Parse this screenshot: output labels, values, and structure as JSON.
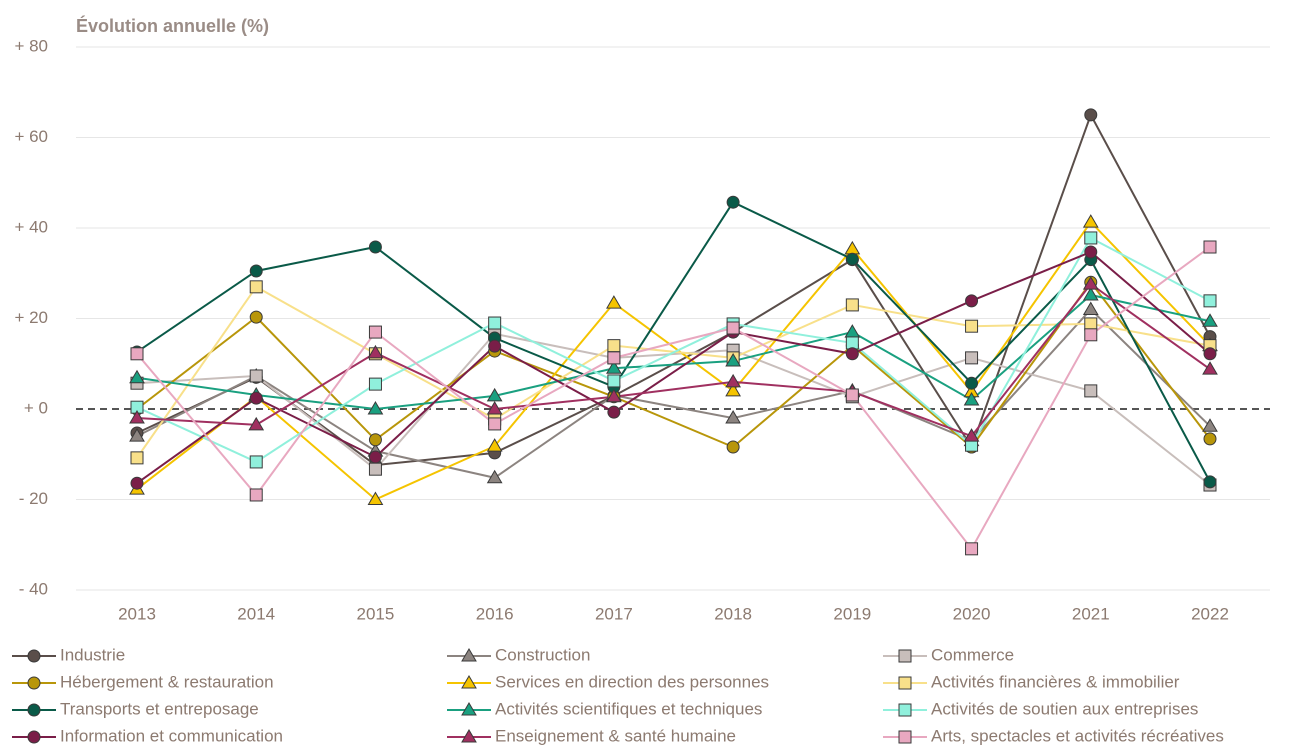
{
  "chart_data": {
    "type": "line",
    "title": "Évolution annuelle (%)",
    "categories": [
      "2013",
      "2014",
      "2015",
      "2016",
      "2017",
      "2018",
      "2019",
      "2020",
      "2021",
      "2022"
    ],
    "ylim": [
      -40,
      80
    ],
    "yticks": [
      {
        "value": -40,
        "label": "- 40"
      },
      {
        "value": -20,
        "label": "- 20"
      },
      {
        "value": 0,
        "label": "+ 0"
      },
      {
        "value": 20,
        "label": "+ 20"
      },
      {
        "value": 40,
        "label": "+ 40"
      },
      {
        "value": 60,
        "label": "+ 60"
      },
      {
        "value": 80,
        "label": "+ 80"
      }
    ],
    "grid": true,
    "series": [
      {
        "name": "Industrie",
        "color": "#5a4e4a",
        "marker": "circle",
        "values": [
          -5.3,
          7,
          -12.4,
          -9.7,
          2.9,
          17,
          33,
          -8.4,
          65,
          16
        ]
      },
      {
        "name": "Construction",
        "color": "#8c8480",
        "marker": "triangle",
        "values": [
          -6,
          7.3,
          -9.3,
          -15.2,
          3,
          -2,
          4,
          -7,
          22,
          -3.8
        ]
      },
      {
        "name": "Commerce",
        "color": "#c8bebb",
        "marker": "square",
        "values": [
          5.7,
          7.3,
          -13.3,
          16.6,
          11.3,
          13,
          2.7,
          11.3,
          4,
          -16.8
        ]
      },
      {
        "name": "Hébergement & restauration",
        "color": "#b8960a",
        "marker": "circle",
        "values": [
          0,
          20.3,
          -6.8,
          12.8,
          2.7,
          -8.4,
          14,
          -8.4,
          28,
          -6.6
        ]
      },
      {
        "name": "Services en direction des personnes",
        "color": "#f5c400",
        "marker": "triangle",
        "values": [
          -17.7,
          2.7,
          -20,
          -8.2,
          23.4,
          4,
          35.4,
          3.8,
          41.3,
          14
        ]
      },
      {
        "name": "Activités financières & immobilier",
        "color": "#f8e08a",
        "marker": "square",
        "values": [
          -10.8,
          27,
          12.2,
          -2.2,
          14,
          11.3,
          23,
          18.3,
          18.8,
          14
        ]
      },
      {
        "name": "Transports et entreposage",
        "color": "#0a5a48",
        "marker": "circle",
        "values": [
          12.6,
          30.5,
          35.8,
          15.7,
          4.9,
          45.7,
          33.1,
          5.7,
          33,
          -16.1
        ]
      },
      {
        "name": "Activités scientifiques et techniques",
        "color": "#1aa080",
        "marker": "triangle",
        "values": [
          6.9,
          3.1,
          0,
          2.9,
          9,
          10.6,
          17,
          2,
          25.2,
          19.4
        ]
      },
      {
        "name": "Activités de soutien aux entreprises",
        "color": "#90f0dc",
        "marker": "square",
        "values": [
          0.4,
          -11.7,
          5.5,
          19,
          6.2,
          18.8,
          14.6,
          -8,
          37.8,
          23.9
        ]
      },
      {
        "name": "Information et communication",
        "color": "#7a1e48",
        "marker": "circle",
        "values": [
          -16.4,
          2.4,
          -10.6,
          13.9,
          -0.7,
          17,
          12.2,
          23.9,
          34.7,
          12.2
        ]
      },
      {
        "name": "Enseignement & santé humaine",
        "color": "#a03060",
        "marker": "triangle",
        "values": [
          -2,
          -3.5,
          12.4,
          0,
          2.7,
          6,
          3.8,
          -6,
          27.6,
          8.8
        ]
      },
      {
        "name": "Arts, spectacles et activités récréatives",
        "color": "#e8a8c0",
        "marker": "square",
        "values": [
          12.2,
          -19,
          17,
          -3.3,
          11.3,
          17.9,
          3.1,
          -30.9,
          16.4,
          35.8
        ]
      }
    ]
  }
}
